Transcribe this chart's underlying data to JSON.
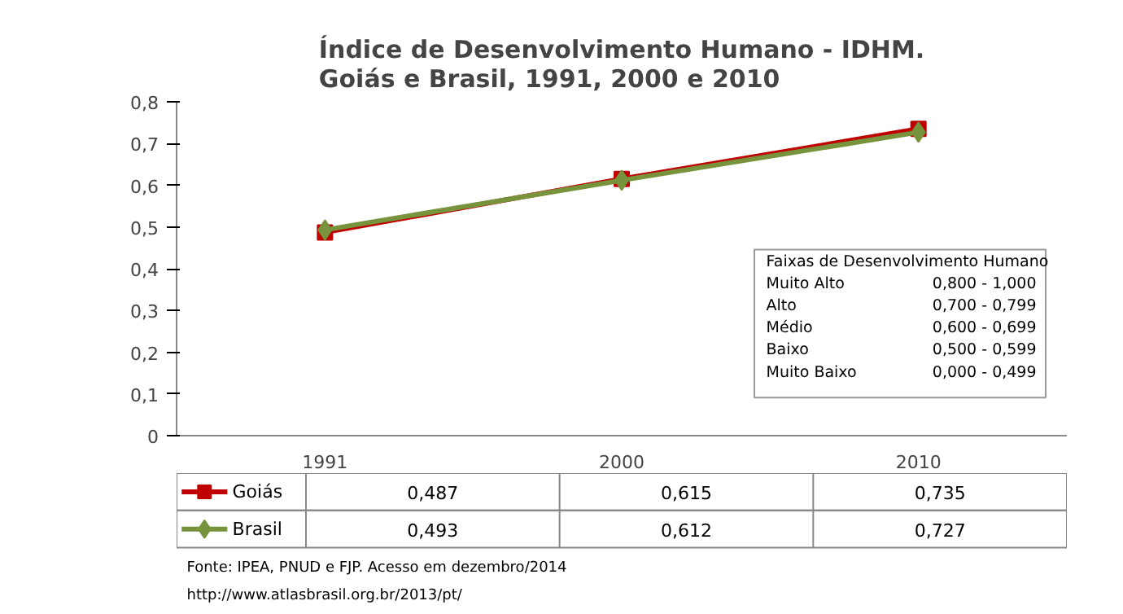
{
  "chart_data": {
    "type": "line",
    "title": "Índice de Desenvolvimento Humano - IDHM.\nGoiás e Brasil, 1991, 2000 e 2010",
    "categories": [
      "1991",
      "2000",
      "2010"
    ],
    "series": [
      {
        "name": "Goiás",
        "color": "#c00000",
        "marker": "square",
        "values": [
          0.487,
          0.615,
          0.735
        ],
        "value_labels": [
          "0,487",
          "0,615",
          "0,735"
        ]
      },
      {
        "name": "Brasil",
        "color": "#77933c",
        "marker": "diamond",
        "values": [
          0.493,
          0.612,
          0.727
        ],
        "value_labels": [
          "0,493",
          "0,612",
          "0,727"
        ]
      }
    ],
    "ylim": [
      0,
      0.8
    ],
    "yticks": [
      {
        "value": 0,
        "label": "0"
      },
      {
        "value": 0.1,
        "label": "0,1"
      },
      {
        "value": 0.2,
        "label": "0,2"
      },
      {
        "value": 0.3,
        "label": "0,3"
      },
      {
        "value": 0.4,
        "label": "0,4"
      },
      {
        "value": 0.5,
        "label": "0,5"
      },
      {
        "value": 0.6,
        "label": "0,6"
      },
      {
        "value": 0.7,
        "label": "0,7"
      },
      {
        "value": 0.8,
        "label": "0,8"
      }
    ],
    "grid": false,
    "legend": "bottom left",
    "annotations": [
      "Faixas de Desenvolvimento Humano",
      "Muito Alto",
      "0,800 - 1,000",
      "Alto",
      "0,700 - 0,799",
      "Médio",
      "0,600 - 0,699",
      "Baixo",
      "0,500 - 0,599",
      "Muito Baixo",
      "0,000 - 0,499",
      "Fonte: IPEA, PNUD e FJP. Acesso em dezembro/2014",
      "http://www.atlasbrasil.org.br/2013/pt/"
    ]
  }
}
